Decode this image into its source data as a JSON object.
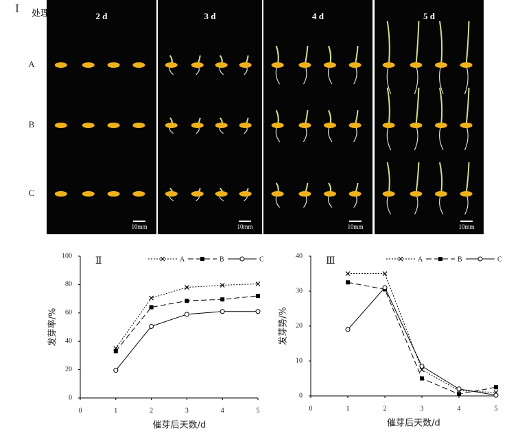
{
  "figure": {
    "panel_label": "Ⅰ",
    "row_header": "处理",
    "columns": [
      "2 d",
      "3 d",
      "4 d",
      "5 d"
    ],
    "rows": [
      "A",
      "B",
      "C"
    ],
    "scale_bar": "10mm"
  },
  "chart_data": [
    {
      "type": "line",
      "panel_label": "Ⅱ",
      "xlabel": "催芽后天数/d",
      "ylabel": "发芽率/%",
      "x": [
        1,
        2,
        3,
        4,
        5
      ],
      "xlim": [
        0,
        5
      ],
      "xticks": [
        0,
        1,
        2,
        3,
        4,
        5
      ],
      "ylim": [
        0,
        100
      ],
      "yticks": [
        0,
        20,
        40,
        60,
        80,
        100
      ],
      "legend": "upper right",
      "series": [
        {
          "name": "A",
          "color": "#000000",
          "dash": "dotted",
          "marker": "x",
          "values": [
            35,
            70.5,
            78,
            79.5,
            80.5
          ]
        },
        {
          "name": "B",
          "color": "#000000",
          "dash": "dashed",
          "marker": "square",
          "values": [
            33,
            64,
            68.5,
            69.5,
            72
          ]
        },
        {
          "name": "C",
          "color": "#000000",
          "dash": "solid",
          "marker": "circle",
          "values": [
            19.5,
            50.5,
            59,
            61,
            61
          ]
        }
      ]
    },
    {
      "type": "line",
      "panel_label": "Ⅲ",
      "xlabel": "催芽后天数/d",
      "ylabel": "发芽势/%",
      "x": [
        1,
        2,
        3,
        4,
        5
      ],
      "xlim": [
        0,
        5
      ],
      "xticks": [
        0,
        1,
        2,
        3,
        4,
        5
      ],
      "ylim": [
        0,
        40
      ],
      "yticks": [
        0,
        10,
        20,
        30,
        40
      ],
      "legend": "upper right",
      "series": [
        {
          "name": "A",
          "color": "#000000",
          "dash": "dotted",
          "marker": "x",
          "values": [
            35,
            35,
            7.5,
            1.5,
            1
          ]
        },
        {
          "name": "B",
          "color": "#000000",
          "dash": "dashed",
          "marker": "square",
          "values": [
            32.5,
            30.5,
            5,
            0.5,
            2.5
          ]
        },
        {
          "name": "C",
          "color": "#000000",
          "dash": "solid",
          "marker": "circle",
          "values": [
            19,
            31,
            8.5,
            2,
            0.2
          ]
        }
      ]
    }
  ]
}
